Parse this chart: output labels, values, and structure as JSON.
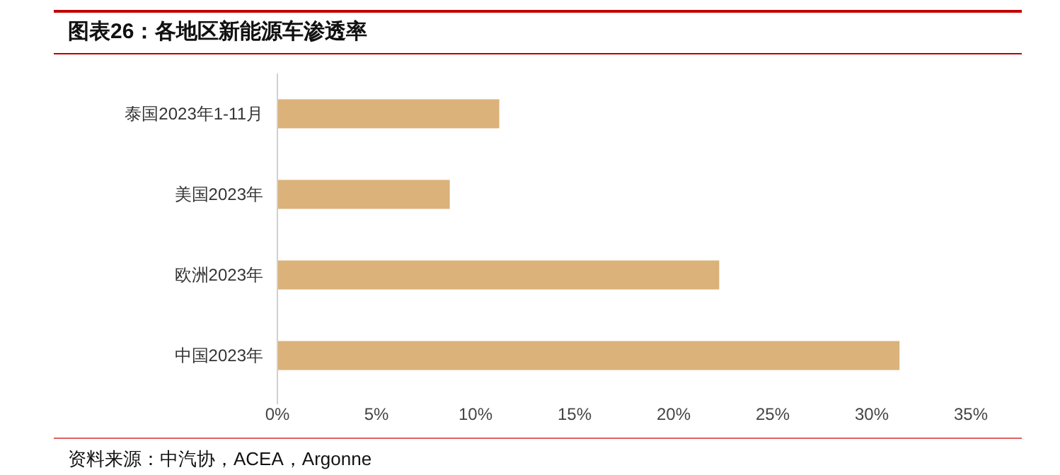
{
  "chart_data": {
    "type": "bar",
    "orientation": "horizontal",
    "title": "图表26：各地区新能源车渗透率",
    "categories": [
      "泰国2023年1-11月",
      "美国2023年",
      "欧洲2023年",
      "中国2023年"
    ],
    "values": [
      11.2,
      8.7,
      22.3,
      31.4
    ],
    "color": "#dbb27a",
    "xlim": [
      0,
      35
    ],
    "xticks": [
      {
        "value": 0,
        "label": "0%"
      },
      {
        "value": 5,
        "label": "5%"
      },
      {
        "value": 10,
        "label": "10%"
      },
      {
        "value": 15,
        "label": "15%"
      },
      {
        "value": 20,
        "label": "20%"
      },
      {
        "value": 25,
        "label": "25%"
      },
      {
        "value": 30,
        "label": "30%"
      },
      {
        "value": 35,
        "label": "35%"
      }
    ],
    "grid": false,
    "annotations": [
      "资料来源：中汽协，ACEA，Argonne"
    ]
  }
}
